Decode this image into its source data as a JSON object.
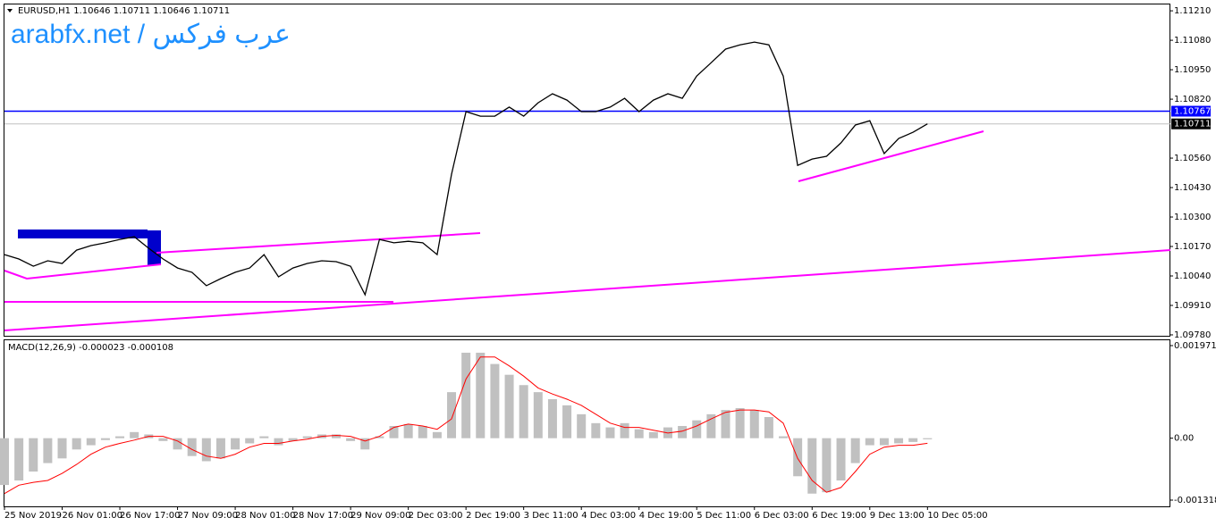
{
  "watermark": "arabfx.net / عرب فركس",
  "chart_data": [
    {
      "type": "line",
      "title": "EURUSD,H1  1.10646 1.10711 1.10646 1.10711",
      "categories": [
        "25 Nov 2019",
        null,
        null,
        null,
        "26 Nov 01:00",
        null,
        null,
        null,
        "26 Nov 17:00",
        null,
        null,
        null,
        "27 Nov 09:00",
        null,
        null,
        null,
        "28 Nov 01:00",
        null,
        null,
        null,
        "28 Nov 17:00",
        null,
        null,
        null,
        "29 Nov 09:00",
        null,
        null,
        null,
        "2 Dec 03:00",
        null,
        null,
        null,
        "2 Dec 19:00",
        null,
        null,
        null,
        "3 Dec 11:00",
        null,
        null,
        null,
        "4 Dec 03:00",
        null,
        null,
        null,
        "4 Dec 19:00",
        null,
        null,
        null,
        "5 Dec 11:00",
        null,
        null,
        null,
        "6 Dec 03:00",
        null,
        null,
        null,
        "6 Dec 19:00",
        null,
        null,
        null,
        "9 Dec 13:00",
        null,
        null,
        null,
        "10 Dec 05:00"
      ],
      "series": [
        {
          "color": "#000000",
          "values": [
            1.10134,
            1.10115,
            1.10083,
            1.10107,
            1.10095,
            1.10154,
            1.10174,
            1.10186,
            1.10201,
            1.10213,
            1.10162,
            1.10115,
            1.10075,
            1.10056,
            1.09997,
            1.10028,
            1.10056,
            1.10075,
            1.10134,
            1.10036,
            1.10075,
            1.10095,
            1.10107,
            1.10103,
            1.10083,
            1.09957,
            1.10201,
            1.10186,
            1.10193,
            1.10186,
            1.10134,
            1.10489,
            1.10765,
            1.10745,
            1.10745,
            1.10785,
            1.10745,
            1.10804,
            1.10844,
            1.10816,
            1.10765,
            1.10765,
            1.10785,
            1.10824,
            1.10765,
            1.10816,
            1.10844,
            1.10824,
            1.10922,
            1.10981,
            1.11041,
            1.1106,
            1.11072,
            1.1106,
            1.10922,
            1.10528,
            1.10556,
            1.10568,
            1.10627,
            1.10706,
            1.10725,
            1.1058,
            1.10647,
            1.10674,
            1.10711
          ]
        }
      ],
      "ylim": [
        1.11238,
        1.09772
      ],
      "yticks": [
        {
          "value": 1.1121,
          "label": "1.11210"
        },
        {
          "value": 1.1108,
          "label": "1.11080"
        },
        {
          "value": 1.1095,
          "label": "1.10950"
        },
        {
          "value": 1.1082,
          "label": "1.10820"
        },
        {
          "value": 1.1056,
          "label": "1.10560"
        },
        {
          "value": 1.1043,
          "label": "1.10430"
        },
        {
          "value": 1.103,
          "label": "1.10300"
        },
        {
          "value": 1.1017,
          "label": "1.10170"
        },
        {
          "value": 1.1004,
          "label": "1.10040"
        },
        {
          "value": 1.0991,
          "label": "1.09910"
        },
        {
          "value": 1.0978,
          "label": "1.09780"
        }
      ],
      "hlines": [
        {
          "value": 1.10767,
          "label": "1.10767",
          "color": "#0000ff"
        }
      ],
      "current_price": {
        "value": 1.10711,
        "label": "1.10711"
      }
    },
    {
      "type": "macd",
      "title": "MACD(12,26,9) -0.000023 -0.000108",
      "series": [
        {
          "type": "bar",
          "color": "#c0c0c0",
          "values": [
            -0.000996,
            -0.0009,
            -0.00071,
            -0.00053,
            -0.00043,
            -0.00024,
            -0.00015,
            -4e-05,
            4e-05,
            0.00013,
            8e-05,
            -6e-05,
            -0.00024,
            -0.00038,
            -0.00049,
            -0.00043,
            -0.00024,
            -0.00011,
            4e-05,
            -0.00015,
            -6e-05,
            4e-05,
            8e-05,
            8e-05,
            -6e-05,
            -0.00024,
            4e-05,
            0.00026,
            0.0003,
            0.00026,
            0.00013,
            0.00098,
            0.00182,
            0.00182,
            0.00158,
            0.00135,
            0.00113,
            0.00098,
            0.00083,
            0.0007,
            0.00051,
            0.00032,
            0.00023,
            0.00032,
            0.00019,
            0.00013,
            0.00023,
            0.00026,
            0.00038,
            0.00051,
            0.0006,
            0.00064,
            0.0006,
            0.00045,
            4e-05,
            -0.00081,
            -0.00118,
            -0.00115,
            -0.0009,
            -0.00053,
            -0.00015,
            -0.00015,
            -0.00011,
            -8e-05,
            -2.3e-05
          ]
        },
        {
          "type": "line",
          "color": "#ff0000",
          "values": [
            -0.00118,
            -0.001,
            -0.00094,
            -0.0009,
            -0.00075,
            -0.00056,
            -0.00034,
            -0.00019,
            -0.00011,
            -4e-05,
            4e-05,
            4e-05,
            -6e-05,
            -0.00024,
            -0.00038,
            -0.00043,
            -0.00034,
            -0.00019,
            -0.00011,
            -0.00011,
            -6e-05,
            -2e-05,
            4e-05,
            6e-05,
            4e-05,
            -6e-05,
            4e-05,
            0.00023,
            0.0003,
            0.00026,
            0.00019,
            0.00041,
            0.00126,
            0.00173,
            0.00173,
            0.00154,
            0.00132,
            0.00107,
            0.00094,
            0.00083,
            0.0007,
            0.00051,
            0.00032,
            0.00023,
            0.00023,
            0.00017,
            0.00011,
            0.00015,
            0.00026,
            0.00041,
            0.00055,
            0.0006,
            0.0006,
            0.00056,
            0.00032,
            -0.00043,
            -0.0009,
            -0.00115,
            -0.00105,
            -0.00071,
            -0.00034,
            -0.00019,
            -0.00015,
            -0.00015,
            -0.000108
          ]
        }
      ],
      "ylim": [
        0.002085,
        -0.001451
      ],
      "yticks": [
        0.001971,
        {
          "value": 0,
          "label": "0.00"
        },
        -0.001318
      ]
    }
  ]
}
